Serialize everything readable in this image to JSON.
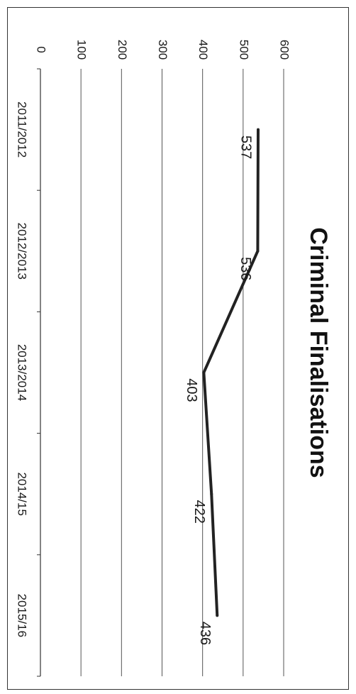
{
  "chart_data": {
    "type": "line",
    "title": "Criminal Finalisations",
    "xlabel": "",
    "ylabel": "",
    "categories": [
      "2011/2012",
      "2012/2013",
      "2013/2014",
      "2014/15",
      "2015/16"
    ],
    "series": [
      {
        "values": [
          537,
          536,
          403,
          422,
          436
        ]
      }
    ],
    "data_labels": [
      "537",
      "536",
      "403",
      "422",
      "436"
    ],
    "ylim": [
      0,
      600
    ],
    "yticks": [
      "0",
      "100",
      "200",
      "300",
      "400",
      "500",
      "600"
    ],
    "grid": true,
    "legend": "none",
    "orientation": "rotated 90° clockwise",
    "colors": {
      "line": "#222222",
      "grid": "#555555",
      "text": "#1a1a1a"
    }
  }
}
